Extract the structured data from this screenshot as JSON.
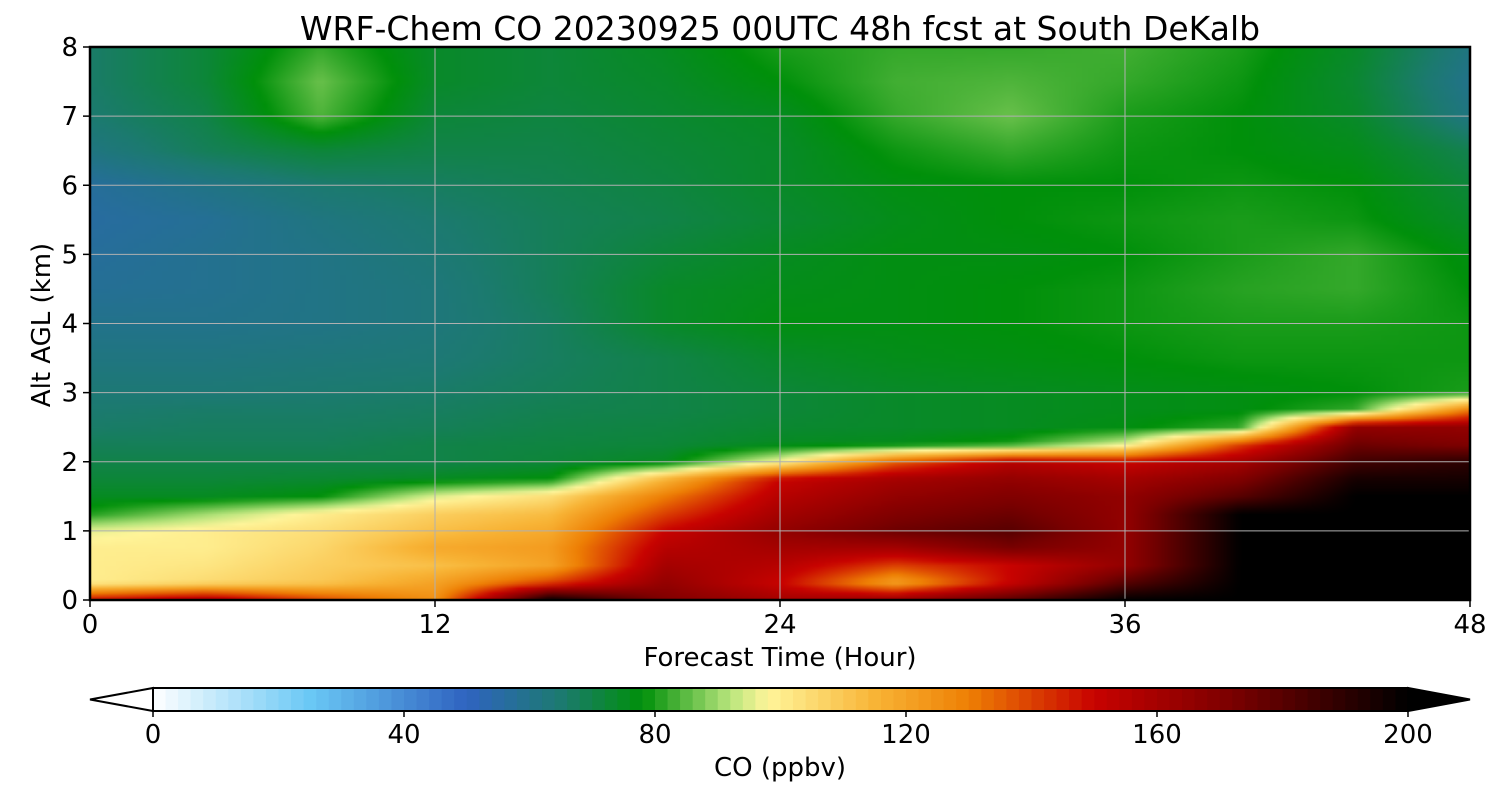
{
  "chart_data": {
    "type": "heatmap",
    "title": "WRF-Chem CO  20230925 00UTC 48h fcst at South DeKalb",
    "xlabel": "Forecast Time (Hour)",
    "ylabel": "Alt AGL (km)",
    "xlim": [
      0,
      48
    ],
    "ylim": [
      0,
      8
    ],
    "xticks": [
      0,
      12,
      24,
      36,
      48
    ],
    "yticks": [
      0,
      1,
      2,
      3,
      4,
      5,
      6,
      7,
      8
    ],
    "grid": true,
    "colorbar": {
      "label": "CO  (ppbv)",
      "range": [
        0,
        200
      ],
      "ticks": [
        0,
        40,
        80,
        120,
        160,
        200
      ],
      "extend": "both",
      "orientation": "horizontal",
      "stops": [
        {
          "value": 0,
          "color": "#ffffff"
        },
        {
          "value": 25,
          "color": "#6ac8f5"
        },
        {
          "value": 50,
          "color": "#2f63c0"
        },
        {
          "value": 65,
          "color": "#1c7a70"
        },
        {
          "value": 78,
          "color": "#00900a"
        },
        {
          "value": 92,
          "color": "#b8e57c"
        },
        {
          "value": 98,
          "color": "#fff59a"
        },
        {
          "value": 115,
          "color": "#f8b436"
        },
        {
          "value": 130,
          "color": "#ee7f04"
        },
        {
          "value": 150,
          "color": "#c80200"
        },
        {
          "value": 172,
          "color": "#7a0000"
        },
        {
          "value": 200,
          "color": "#000000"
        }
      ]
    },
    "times": [
      0,
      4,
      8,
      12,
      16,
      20,
      24,
      28,
      32,
      36,
      40,
      44,
      48
    ],
    "altitudes": [
      0,
      0.25,
      0.5,
      0.75,
      1.0,
      1.25,
      1.5,
      1.75,
      2.0,
      2.25,
      2.5,
      2.75,
      3.0,
      3.5,
      4.0,
      4.5,
      5.0,
      5.5,
      6.0,
      6.5,
      7.0,
      7.5,
      8.0
    ],
    "values": [
      [
        150,
        160,
        140,
        125,
        200,
        170,
        160,
        165,
        180,
        200,
        200,
        200,
        200
      ],
      [
        100,
        105,
        110,
        120,
        140,
        165,
        150,
        120,
        150,
        180,
        200,
        200,
        200
      ],
      [
        100,
        102,
        108,
        112,
        120,
        160,
        155,
        140,
        150,
        165,
        200,
        200,
        200
      ],
      [
        100,
        100,
        106,
        118,
        122,
        155,
        160,
        160,
        172,
        165,
        200,
        200,
        200
      ],
      [
        96,
        100,
        104,
        112,
        118,
        150,
        165,
        175,
        180,
        165,
        200,
        200,
        200
      ],
      [
        80,
        90,
        100,
        108,
        113,
        140,
        160,
        170,
        175,
        165,
        200,
        200,
        200
      ],
      [
        75,
        75,
        78,
        95,
        104,
        130,
        155,
        165,
        170,
        165,
        180,
        200,
        200
      ],
      [
        72,
        72,
        73,
        75,
        78,
        115,
        150,
        160,
        165,
        160,
        170,
        195,
        195
      ],
      [
        70,
        70,
        70,
        70,
        72,
        75,
        98,
        135,
        155,
        150,
        160,
        185,
        190
      ],
      [
        68,
        68,
        68,
        70,
        71,
        72,
        75,
        76,
        80,
        95,
        140,
        175,
        170
      ],
      [
        66,
        67,
        67,
        68,
        70,
        71,
        73,
        74,
        75,
        77,
        82,
        165,
        165
      ],
      [
        65,
        66,
        66,
        67,
        69,
        70,
        72,
        74,
        75,
        76,
        77,
        82,
        130
      ],
      [
        64,
        64,
        65,
        66,
        68,
        70,
        72,
        74,
        75,
        76,
        77,
        78,
        80
      ],
      [
        62,
        62,
        63,
        64,
        67,
        70,
        74,
        76,
        77,
        78,
        79,
        79,
        79
      ],
      [
        60,
        60,
        61,
        63,
        67,
        74,
        77,
        77,
        78,
        79,
        80,
        80,
        79
      ],
      [
        58,
        59,
        61,
        63,
        68,
        74,
        76,
        77,
        78,
        79,
        81,
        82,
        78
      ],
      [
        57,
        59,
        61,
        64,
        68,
        72,
        75,
        77,
        77,
        78,
        80,
        82,
        77
      ],
      [
        56,
        58,
        62,
        65,
        68,
        70,
        73,
        76,
        78,
        79,
        80,
        79,
        74
      ],
      [
        57,
        61,
        65,
        67,
        69,
        71,
        74,
        77,
        78,
        78,
        79,
        78,
        72
      ],
      [
        62,
        68,
        72,
        70,
        70,
        72,
        74,
        79,
        82,
        79,
        78,
        76,
        69
      ],
      [
        65,
        70,
        84,
        72,
        71,
        73,
        75,
        82,
        86,
        80,
        78,
        74,
        62
      ],
      [
        66,
        72,
        86,
        74,
        72,
        74,
        78,
        83,
        84,
        82,
        79,
        73,
        60
      ],
      [
        66,
        72,
        82,
        74,
        72,
        75,
        80,
        82,
        82,
        83,
        80,
        74,
        62
      ]
    ]
  }
}
